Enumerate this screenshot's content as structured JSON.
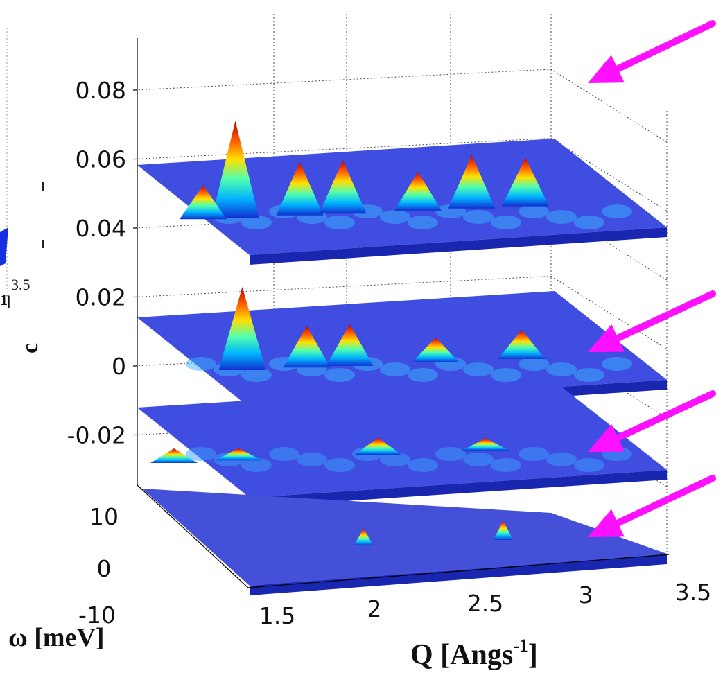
{
  "chart_data": {
    "type": "surface3d",
    "title": "",
    "xlabel": "Q [Angs",
    "xlabel_sup": "-1",
    "xlabel_end": "]",
    "ylabel": "ω [meV]",
    "zlabel_fragment": "c",
    "x_ticks": [
      "1.5",
      "2",
      "2.5",
      "3",
      "3.5"
    ],
    "y_ticks": [
      "10",
      "0",
      "-10"
    ],
    "z_ticks": [
      "0.08",
      "0.06",
      "0.04",
      "0.02",
      "0",
      "-0.02"
    ],
    "xlim": [
      1.5,
      3.5
    ],
    "ylim": [
      -10,
      10
    ],
    "grid": true,
    "colormap": "jet",
    "layers": [
      {
        "peaks": [
          [
            1.95,
            0.0,
            1.0
          ],
          [
            2.25,
            0.0,
            0.55
          ],
          [
            2.45,
            0.0,
            0.55
          ],
          [
            2.8,
            0.0,
            0.4
          ],
          [
            3.05,
            0.0,
            0.55
          ],
          [
            3.3,
            0.0,
            0.5
          ],
          [
            1.8,
            0.0,
            0.35
          ]
        ],
        "arrow": true
      },
      {
        "peaks": [
          [
            1.95,
            0.0,
            1.0
          ],
          [
            2.25,
            0.0,
            0.5
          ],
          [
            2.45,
            0.0,
            0.5
          ],
          [
            3.25,
            0.0,
            0.35
          ],
          [
            2.85,
            0.0,
            0.3
          ]
        ],
        "arrow": true
      },
      {
        "peaks": [
          [
            1.6,
            0.0,
            0.3
          ],
          [
            1.9,
            0.0,
            0.25
          ],
          [
            2.55,
            0.0,
            0.35
          ],
          [
            3.05,
            0.0,
            0.25
          ]
        ],
        "arrow": true
      },
      {
        "peaks": [
          [
            2.45,
            0.0,
            0.35
          ],
          [
            3.1,
            0.0,
            0.4
          ]
        ],
        "arrow": true
      }
    ],
    "arrow_color": "#ff10ff",
    "left_fragment": {
      "text": "1",
      "sup": "3.5",
      "bracket": "]"
    }
  }
}
